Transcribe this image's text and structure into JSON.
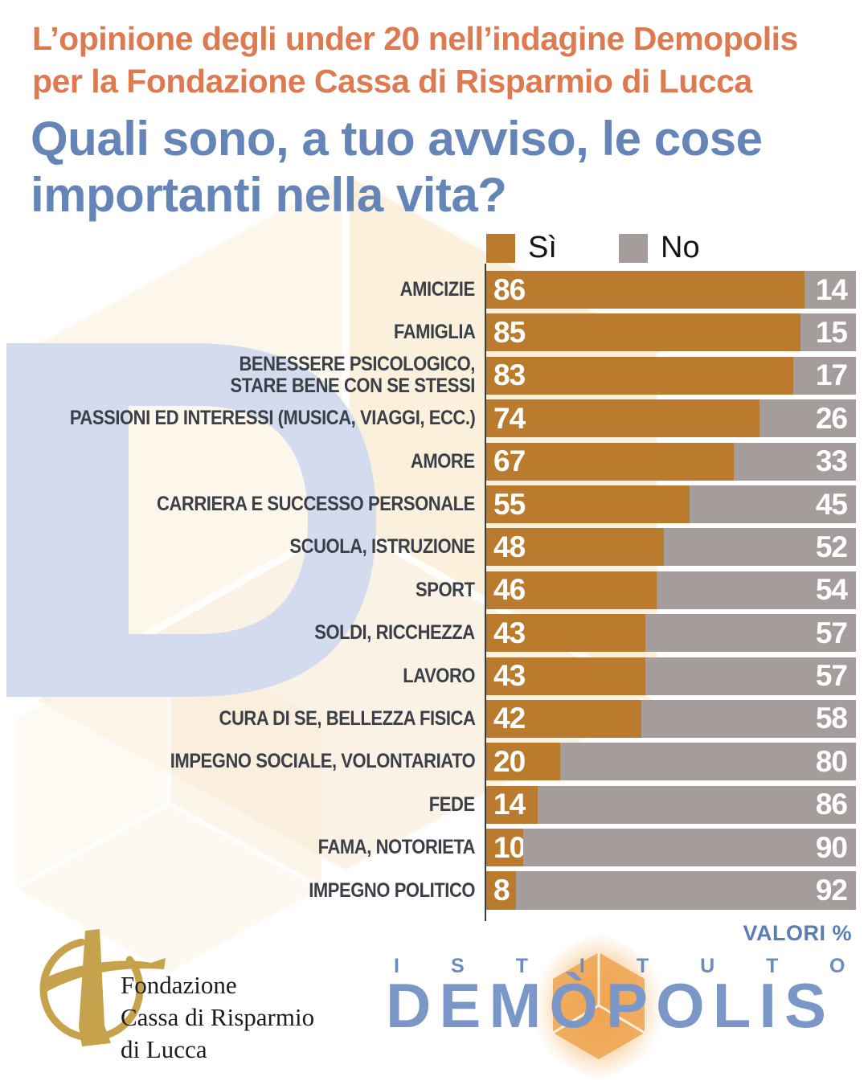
{
  "header": {
    "kicker": "L’opinione degli under 20 nell’indagine Demopolis\nper la Fondazione Cassa di Risparmio di Lucca",
    "title": "Quali sono, a tuo avviso, le cose\nimportanti nella vita?"
  },
  "legend": {
    "yes": "Sì",
    "no": "No"
  },
  "chart_data": {
    "type": "bar",
    "orientation": "horizontal",
    "stacked": true,
    "unit": "%",
    "xlim": [
      0,
      100
    ],
    "value_note": "VALORI %",
    "categories": [
      "AMICIZIE",
      "FAMIGLIA",
      "BENESSERE PSICOLOGICO,\nSTARE BENE CON SE STESSI",
      "PASSIONI ED INTERESSI (MUSICA, VIAGGI, ECC.)",
      "AMORE",
      "CARRIERA E SUCCESSO PERSONALE",
      "SCUOLA, ISTRUZIONE",
      "SPORT",
      "SOLDI, RICCHEZZA",
      "LAVORO",
      "CURA DI SE, BELLEZZA FISICA",
      "IMPEGNO SOCIALE, VOLONTARIATO",
      "FEDE",
      "FAMA, NOTORIETA",
      "IMPEGNO POLITICO"
    ],
    "series": [
      {
        "name": "Sì",
        "color": "#ba7b2e",
        "values": [
          86,
          85,
          83,
          74,
          67,
          55,
          48,
          46,
          43,
          43,
          42,
          20,
          14,
          10,
          8
        ]
      },
      {
        "name": "No",
        "color": "#a59d9b",
        "values": [
          14,
          15,
          17,
          26,
          33,
          45,
          52,
          54,
          57,
          57,
          58,
          80,
          86,
          90,
          92
        ]
      }
    ],
    "legend_position": "top",
    "grid": false
  },
  "footer": {
    "fondazione_text": "Fondazione\nCassa di Risparmio\ndi Lucca",
    "istituto": "ISTITUTO",
    "demopolis": "DEMÒPOLIS"
  },
  "colors": {
    "kicker": "#dd7a50",
    "title": "#6584b8",
    "label": "#3b4048",
    "yes_bar": "#ba7b2e",
    "no_bar": "#a59d9b",
    "bar_value_text": "#ffffff",
    "valori_text": "#5b7db3",
    "axis": "#3c3c3c",
    "watermark_blue": "#d3dcee",
    "watermark_cream": "#fbeed7",
    "logo_gold": "#c5a24b",
    "logo_blue": "#7b97c7"
  }
}
